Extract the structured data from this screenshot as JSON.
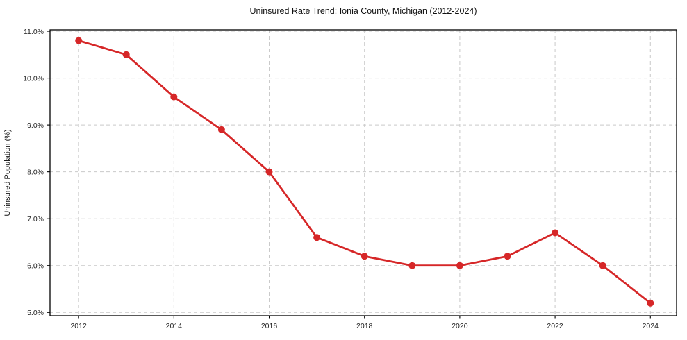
{
  "page": {
    "background": "#ffffff"
  },
  "chart_data": {
    "type": "line",
    "title": "Uninsured Rate Trend: Ionia County, Michigan (2012-2024)",
    "xlabel": "",
    "ylabel": "Uninsured Population (%)",
    "x": [
      2012,
      2013,
      2014,
      2015,
      2016,
      2017,
      2018,
      2019,
      2020,
      2021,
      2022,
      2023,
      2024
    ],
    "values": [
      10.8,
      10.5,
      9.6,
      8.9,
      8.0,
      6.6,
      6.2,
      6.0,
      6.0,
      6.2,
      6.7,
      6.0,
      5.2
    ],
    "series_name": "Uninsured rate",
    "xlim": [
      2011.4,
      2024.55
    ],
    "ylim": [
      4.93,
      11.03
    ],
    "x_ticks": [
      {
        "v": 2012,
        "label": "2012"
      },
      {
        "v": 2014,
        "label": "2014"
      },
      {
        "v": 2016,
        "label": "2016"
      },
      {
        "v": 2018,
        "label": "2018"
      },
      {
        "v": 2020,
        "label": "2020"
      },
      {
        "v": 2022,
        "label": "2022"
      },
      {
        "v": 2024,
        "label": "2024"
      }
    ],
    "y_ticks": [
      {
        "v": 5.0,
        "label": "5.0%"
      },
      {
        "v": 6.0,
        "label": "6.0%"
      },
      {
        "v": 7.0,
        "label": "7.0%"
      },
      {
        "v": 8.0,
        "label": "8.0%"
      },
      {
        "v": 9.0,
        "label": "9.0%"
      },
      {
        "v": 10.0,
        "label": "10.0%"
      },
      {
        "v": 11.0,
        "label": "11.0%"
      }
    ],
    "grid": true,
    "legend": "none",
    "colors": {
      "line": "#d62728",
      "marker": "#d62728",
      "grid": "#c9c9c9",
      "spine": "#000000",
      "text": "#1a1a1a"
    }
  }
}
